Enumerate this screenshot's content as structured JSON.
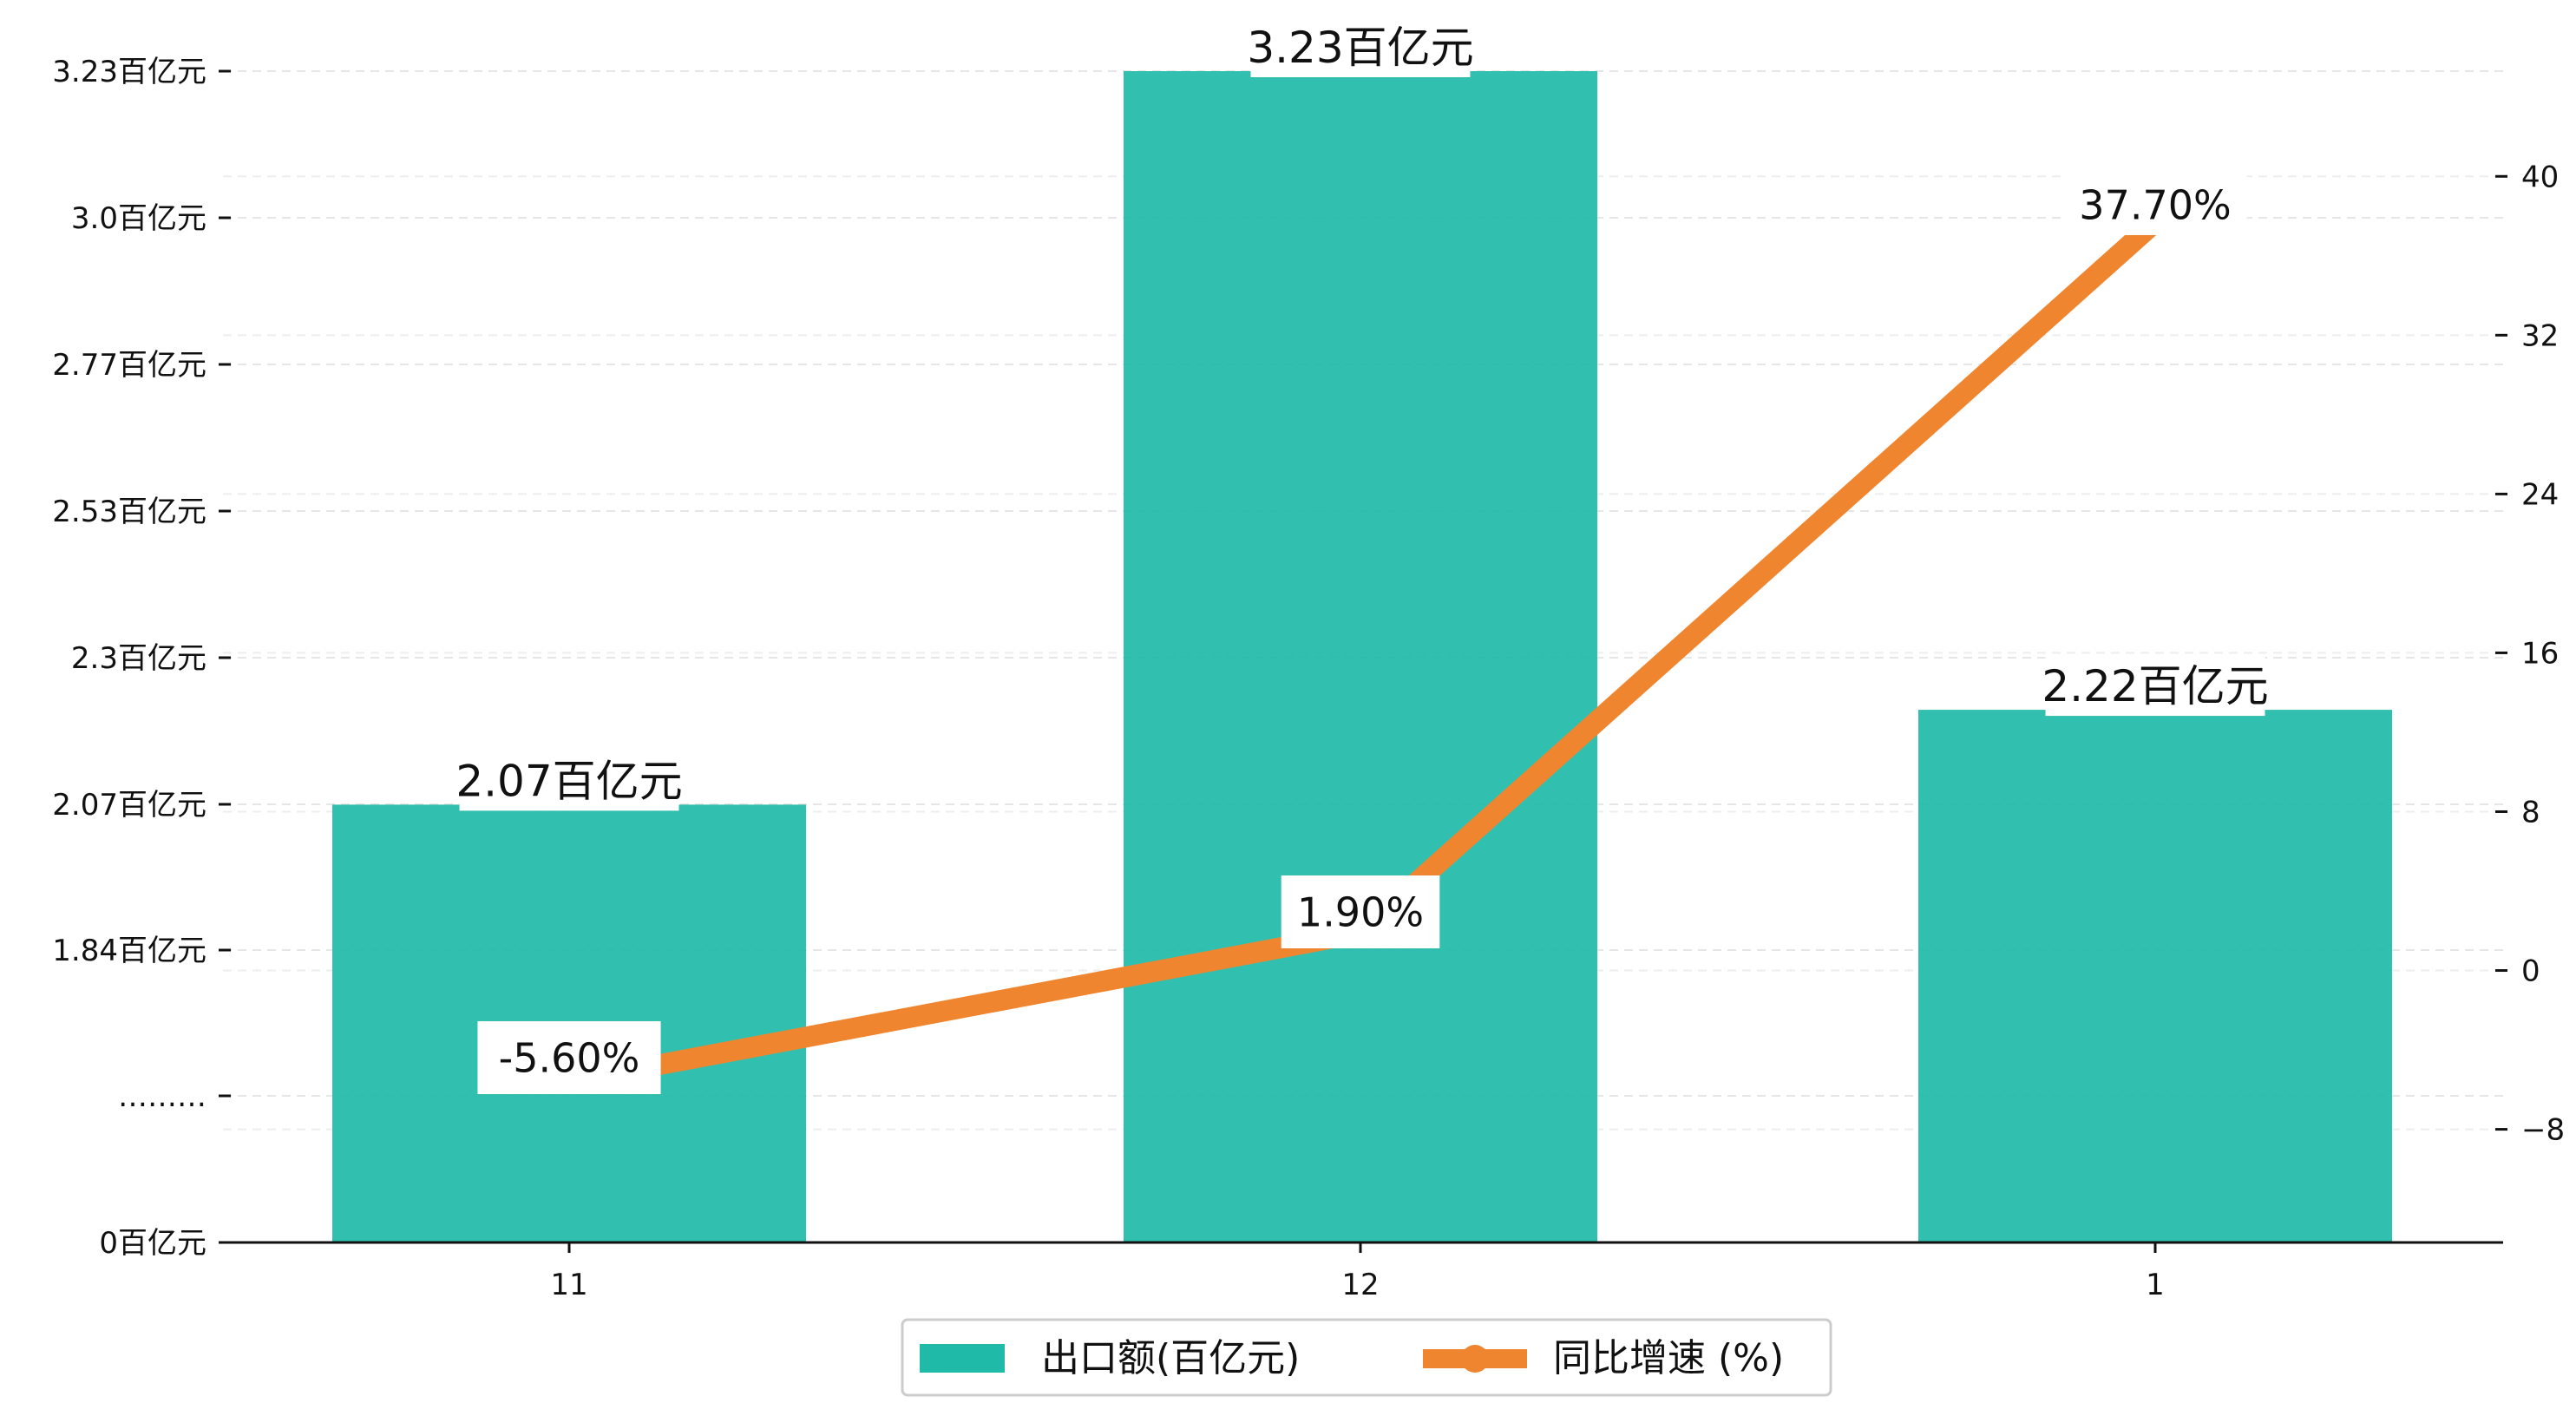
{
  "chart_data": {
    "type": "bar",
    "categories": [
      "11",
      "12",
      "1"
    ],
    "left_axis": {
      "tick_labels": [
        "0百亿元",
        "………",
        "1.84百亿元",
        "2.07百亿元",
        "2.3百亿元",
        "2.53百亿元",
        "2.77百亿元",
        "3.0百亿元",
        "3.23百亿元"
      ]
    },
    "right_axis": {
      "ticks": [
        -8,
        0,
        8,
        16,
        24,
        32,
        40
      ],
      "ylim": [
        -13.7,
        45.3
      ]
    },
    "series": [
      {
        "name": "出口额(百亿元)",
        "type": "bar",
        "axis": "left",
        "values": [
          2.07,
          3.23,
          2.22
        ],
        "labels": [
          "2.07百亿元",
          "3.23百亿元",
          "2.22百亿元"
        ],
        "color": "#20bba8"
      },
      {
        "name": "同比增速 (%)",
        "type": "line",
        "axis": "right",
        "values": [
          -5.6,
          1.9,
          37.7
        ],
        "labels": [
          "-5.60%",
          "1.90%",
          "37.70%"
        ],
        "color": "#f08530"
      }
    ],
    "legend_position": "bottom-center",
    "grid": "horizontal dashed"
  }
}
